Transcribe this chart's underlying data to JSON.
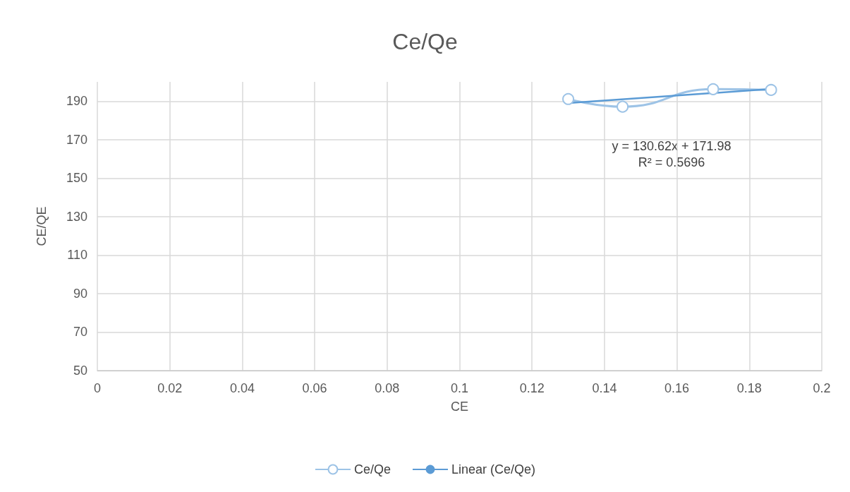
{
  "chart_data": {
    "type": "line",
    "title": "Ce/Qe",
    "xlabel": "CE",
    "ylabel": "CE/QE",
    "series": [
      {
        "name": "Ce/Qe",
        "color": "#9dc3e6",
        "x": [
          0.13,
          0.145,
          0.17,
          0.186
        ],
        "values": [
          191.1,
          187.1,
          196.2,
          195.8
        ],
        "marker": "circle"
      },
      {
        "name": "Linear (Ce/Qe)",
        "color": "#5b9bd5",
        "x": [
          0.13,
          0.186
        ],
        "values": [
          189,
          196.3
        ],
        "marker": "none"
      }
    ],
    "annotations": [
      "y = 130.62x + 171.98",
      "R² = 0.5696"
    ],
    "xlim": [
      0,
      0.2
    ],
    "xticks": [
      0,
      0.02,
      0.04,
      0.06,
      0.08,
      0.1,
      0.12,
      0.14,
      0.16,
      0.18,
      0.2
    ],
    "ylim": [
      50,
      200
    ],
    "yticks": [
      50,
      70,
      90,
      110,
      130,
      150,
      170,
      190
    ],
    "grid": true,
    "legend": "bottom"
  }
}
